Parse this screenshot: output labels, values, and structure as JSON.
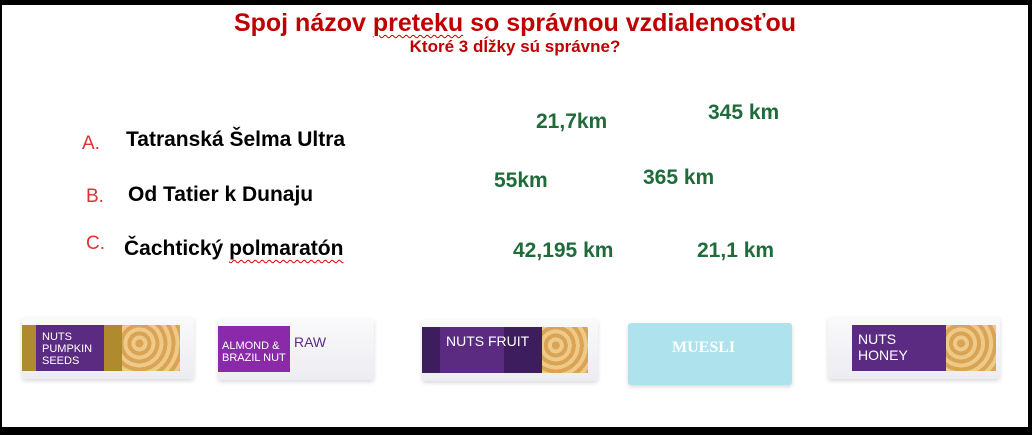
{
  "title": {
    "prefix": "Spoj názov ",
    "underlined": "preteku",
    "suffix": " so správnou vzdialenosťou"
  },
  "subtitle": "Ktoré 3 dĺžky sú správne?",
  "races": [
    {
      "letter": "A.",
      "name": "Tatranská Šelma Ultra"
    },
    {
      "letter": "B.",
      "name": "Od Tatier k Dunaju"
    },
    {
      "letter": "C.",
      "name_prefix": "Čachtický ",
      "name_underlined": "polmaratón"
    }
  ],
  "distances": [
    "21,7km",
    "345 km",
    "55km",
    "365 km",
    "42,195 km",
    "21,1 km"
  ],
  "products": [
    {
      "label": "NUTS PUMPKIN SEEDS"
    },
    {
      "label": "ALMOND & BRAZIL NUT",
      "label2": "RAW"
    },
    {
      "label": "NUTS FRUIT"
    },
    {
      "label": "MUESLI"
    },
    {
      "label": "NUTS HONEY"
    }
  ],
  "colors": {
    "title": "#c00000",
    "letters": "#e03030",
    "distances": "#1f6b3a",
    "purple": "#5b2b82",
    "muesli": "#aee3ee"
  }
}
